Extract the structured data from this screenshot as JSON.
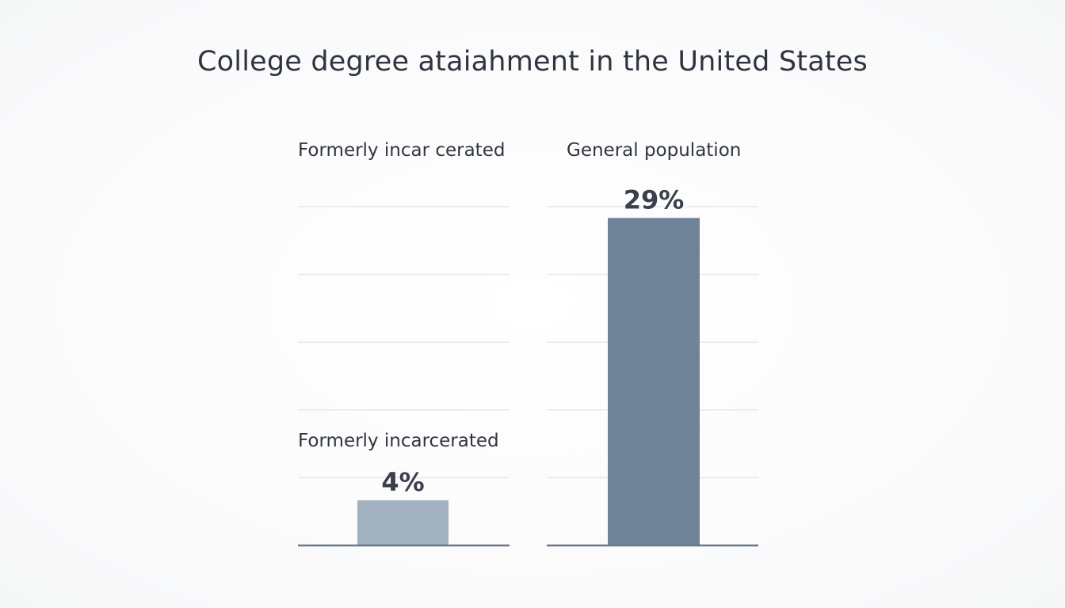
{
  "chart_data": {
    "type": "bar",
    "title": "College degree ataiahment in the United States",
    "categories": [
      "Formerly incarcerated",
      "General population"
    ],
    "values": [
      4,
      29
    ],
    "value_labels": [
      "4%",
      "29%"
    ],
    "panel_headers": [
      "Formerly incar cerated",
      "General population"
    ],
    "bar_colors": [
      "#a2b1bf",
      "#718398"
    ],
    "ylim": [
      0,
      30
    ],
    "grid": true,
    "gridline_values": [
      0,
      6,
      12,
      18,
      24,
      30
    ],
    "unit": "%"
  }
}
